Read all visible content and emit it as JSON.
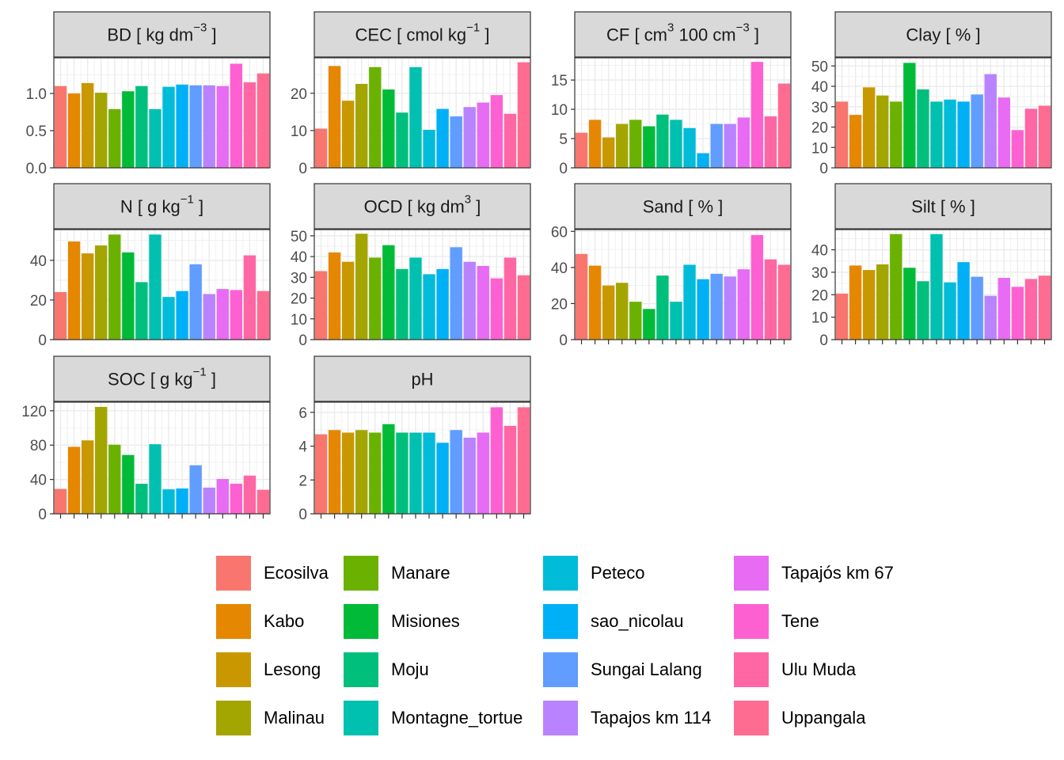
{
  "chart_data": {
    "type": "bar",
    "layout": "faceted small multiples, 4 columns",
    "categories": [
      "Ecosilva",
      "Kabo",
      "Lesong",
      "Malinau",
      "Manare",
      "Misiones",
      "Moju",
      "Montagne_tortue",
      "Peteco",
      "sao_nicolau",
      "Sungai Lalang",
      "Tapajos km 114",
      "Tapajós km 67",
      "Tene",
      "Ulu Muda",
      "Uppangala"
    ],
    "colors": [
      "#F8766D",
      "#E58700",
      "#C99800",
      "#A3A500",
      "#6BB100",
      "#00BA38",
      "#00BF7D",
      "#00C0AF",
      "#00BCD8",
      "#00B0F6",
      "#619CFF",
      "#B983FF",
      "#E76BF3",
      "#FD61D1",
      "#FF67A4",
      "#FF6C91"
    ],
    "grid": true,
    "x_tick_labels": "none (tick marks only)",
    "legend": {
      "position": "bottom",
      "columns": [
        [
          "Ecosilva",
          "Kabo",
          "Lesong",
          "Malinau"
        ],
        [
          "Manare",
          "Misiones",
          "Moju",
          "Montagne_tortue"
        ],
        [
          "Peteco",
          "sao_nicolau",
          "Sungai Lalang",
          "Tapajos km 114"
        ],
        [
          "Tapajós km 67",
          "Tene",
          "Ulu Muda",
          "Uppangala"
        ]
      ]
    },
    "facets": [
      {
        "id": "bd",
        "label": "BD [ kg dm",
        "sup": "−3",
        "suffix": " ]",
        "ylim": [
          0,
          1.48
        ],
        "yticks": [
          0,
          0.5,
          1.0
        ],
        "ytick_labels": [
          "0.0",
          "0.5",
          "1.0"
        ],
        "values": [
          1.1,
          1.0,
          1.14,
          1.01,
          0.79,
          1.03,
          1.1,
          0.79,
          1.09,
          1.12,
          1.11,
          1.11,
          1.1,
          1.4,
          1.15,
          1.27
        ]
      },
      {
        "id": "cec",
        "label": "CEC [ cmol kg",
        "sup": "−1",
        "suffix": " ]",
        "ylim": [
          0,
          29.5
        ],
        "yticks": [
          0,
          10,
          20
        ],
        "ytick_labels": [
          "0",
          "10",
          "20"
        ],
        "values": [
          10.5,
          27.3,
          18.0,
          22.5,
          27.0,
          21.0,
          14.8,
          27.0,
          10.2,
          15.8,
          13.8,
          16.3,
          17.5,
          19.5,
          14.5,
          28.3
        ]
      },
      {
        "id": "cf",
        "label": "CF [ cm",
        "sup": "3",
        "middle": " 100 cm",
        "sup2": "−3",
        "suffix": " ]",
        "ylim": [
          0,
          18.8
        ],
        "yticks": [
          0,
          5,
          10,
          15
        ],
        "ytick_labels": [
          "0",
          "5",
          "10",
          "15"
        ],
        "values": [
          6.0,
          8.2,
          5.2,
          7.5,
          8.2,
          7.1,
          9.1,
          8.2,
          6.8,
          2.5,
          7.5,
          7.5,
          8.6,
          18.1,
          8.8,
          14.4
        ]
      },
      {
        "id": "clay",
        "label": "Clay [ % ]",
        "ylim": [
          0,
          54
        ],
        "yticks": [
          0,
          10,
          20,
          30,
          40,
          50
        ],
        "ytick_labels": [
          "0",
          "10",
          "20",
          "30",
          "40",
          "50"
        ],
        "values": [
          32.5,
          26.0,
          39.5,
          35.5,
          32.5,
          51.5,
          38.5,
          32.5,
          33.5,
          32.5,
          36.0,
          46.0,
          34.5,
          18.5,
          29.0,
          30.5
        ]
      },
      {
        "id": "n",
        "label": "N [ g kg",
        "sup": "−1",
        "suffix": " ]",
        "ylim": [
          0,
          55.5
        ],
        "yticks": [
          0,
          20,
          40
        ],
        "ytick_labels": [
          "0",
          "20",
          "40"
        ],
        "values": [
          24.0,
          49.5,
          43.5,
          47.5,
          53.0,
          44.0,
          29.0,
          53.0,
          21.5,
          24.5,
          38.0,
          23.0,
          25.5,
          25.0,
          42.5,
          24.5
        ]
      },
      {
        "id": "ocd",
        "label": "OCD [ kg dm",
        "sup": "3",
        "suffix": " ]",
        "ylim": [
          0,
          53
        ],
        "yticks": [
          0,
          10,
          20,
          30,
          40,
          50
        ],
        "ytick_labels": [
          "0",
          "10",
          "20",
          "30",
          "40",
          "50"
        ],
        "values": [
          33.0,
          42.0,
          37.5,
          51.0,
          39.5,
          45.5,
          34.0,
          39.5,
          31.5,
          34.0,
          44.5,
          37.5,
          35.5,
          29.5,
          39.5,
          31.0
        ]
      },
      {
        "id": "sand",
        "label": "Sand [ % ]",
        "ylim": [
          0,
          61
        ],
        "yticks": [
          0,
          20,
          40,
          60
        ],
        "ytick_labels": [
          "0",
          "20",
          "40",
          "60"
        ],
        "values": [
          47.5,
          41.0,
          30.0,
          31.5,
          21.0,
          17.0,
          35.5,
          21.0,
          41.5,
          33.5,
          36.5,
          35.0,
          39.0,
          58.0,
          44.5,
          41.5
        ]
      },
      {
        "id": "silt",
        "label": "Silt [ % ]",
        "ylim": [
          0,
          49
        ],
        "yticks": [
          0,
          10,
          20,
          30,
          40
        ],
        "ytick_labels": [
          "0",
          "10",
          "20",
          "30",
          "40"
        ],
        "values": [
          20.5,
          33.0,
          31.0,
          33.5,
          47.0,
          32.0,
          26.0,
          47.0,
          25.5,
          34.5,
          28.0,
          19.5,
          27.5,
          23.5,
          27.0,
          28.5
        ]
      },
      {
        "id": "soc",
        "label": "SOC [ g kg",
        "sup": "−1",
        "suffix": " ]",
        "ylim": [
          0,
          130
        ],
        "yticks": [
          0,
          40,
          80,
          120
        ],
        "ytick_labels": [
          "0",
          "40",
          "80",
          "120"
        ],
        "values": [
          29.0,
          78.0,
          85.5,
          124.5,
          80.5,
          68.5,
          35.0,
          81.0,
          28.5,
          29.5,
          56.5,
          30.5,
          40.5,
          35.0,
          44.5,
          28.0
        ]
      },
      {
        "id": "ph",
        "label": "pH",
        "ylim": [
          0,
          6.6
        ],
        "yticks": [
          0,
          2,
          4,
          6
        ],
        "ytick_labels": [
          "0",
          "2",
          "4",
          "6"
        ],
        "values": [
          4.7,
          4.95,
          4.8,
          4.95,
          4.8,
          5.3,
          4.8,
          4.8,
          4.8,
          4.2,
          4.95,
          4.5,
          4.8,
          6.3,
          5.2,
          6.3
        ]
      }
    ]
  }
}
